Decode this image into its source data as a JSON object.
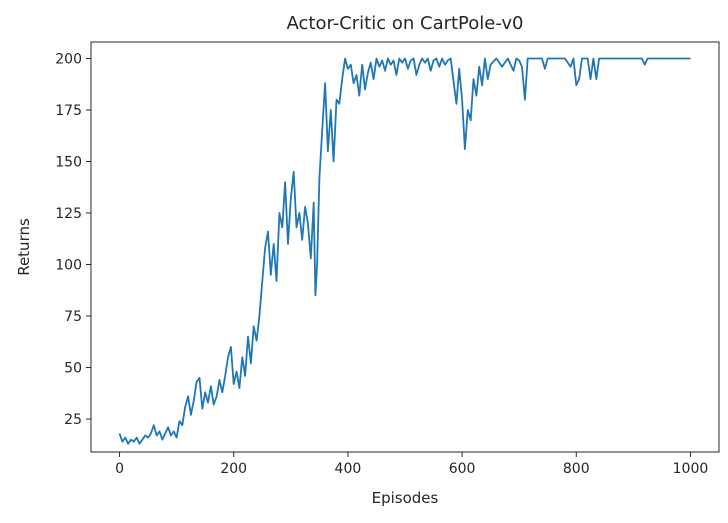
{
  "chart_data": {
    "type": "line",
    "title": "Actor-Critic on CartPole-v0",
    "xlabel": "Episodes",
    "ylabel": "Returns",
    "xlim": [
      -50,
      1050
    ],
    "ylim": [
      9,
      208
    ],
    "xticks": [
      0,
      200,
      400,
      600,
      800,
      1000
    ],
    "yticks": [
      25,
      50,
      75,
      100,
      125,
      150,
      175,
      200
    ],
    "grid": false,
    "series": [
      {
        "color": "#1f77b4",
        "x": [
          0,
          5,
          10,
          15,
          20,
          25,
          30,
          35,
          40,
          45,
          50,
          55,
          60,
          65,
          70,
          75,
          80,
          85,
          90,
          95,
          100,
          105,
          110,
          115,
          120,
          125,
          130,
          135,
          140,
          145,
          150,
          155,
          160,
          165,
          170,
          175,
          180,
          185,
          190,
          195,
          200,
          205,
          210,
          215,
          220,
          225,
          230,
          235,
          240,
          245,
          250,
          255,
          260,
          265,
          270,
          275,
          280,
          285,
          290,
          295,
          300,
          305,
          310,
          315,
          320,
          325,
          330,
          335,
          340,
          343,
          346,
          350,
          355,
          360,
          365,
          370,
          375,
          380,
          385,
          390,
          395,
          400,
          405,
          410,
          415,
          420,
          425,
          430,
          435,
          440,
          445,
          450,
          455,
          460,
          465,
          470,
          475,
          480,
          485,
          490,
          495,
          500,
          505,
          510,
          515,
          520,
          525,
          530,
          535,
          540,
          545,
          550,
          555,
          560,
          565,
          570,
          575,
          580,
          585,
          590,
          595,
          600,
          605,
          610,
          615,
          620,
          625,
          630,
          635,
          640,
          645,
          650,
          660,
          670,
          680,
          690,
          695,
          700,
          705,
          710,
          715,
          720,
          740,
          745,
          750,
          760,
          780,
          790,
          795,
          800,
          805,
          810,
          820,
          825,
          830,
          835,
          840,
          860,
          900,
          915,
          920,
          925,
          940,
          1000
        ],
        "y": [
          18,
          14,
          16,
          13,
          15,
          14,
          16,
          13,
          15,
          17,
          16,
          18,
          22,
          17,
          19,
          15,
          18,
          21,
          17,
          19,
          16,
          24,
          22,
          31,
          36,
          27,
          34,
          43,
          45,
          30,
          38,
          33,
          41,
          32,
          36,
          44,
          38,
          46,
          55,
          60,
          42,
          48,
          40,
          55,
          46,
          65,
          52,
          70,
          63,
          75,
          92,
          108,
          116,
          95,
          110,
          92,
          125,
          118,
          140,
          110,
          132,
          145,
          118,
          125,
          112,
          128,
          120,
          103,
          130,
          85,
          100,
          142,
          165,
          188,
          155,
          175,
          150,
          180,
          178,
          190,
          200,
          195,
          197,
          188,
          192,
          182,
          197,
          185,
          193,
          198,
          190,
          200,
          196,
          199,
          194,
          200,
          197,
          199,
          192,
          200,
          198,
          200,
          195,
          199,
          200,
          192,
          197,
          200,
          198,
          200,
          194,
          199,
          200,
          196,
          200,
          197,
          199,
          200,
          189,
          178,
          195,
          180,
          156,
          175,
          170,
          190,
          182,
          196,
          187,
          200,
          190,
          197,
          200,
          196,
          200,
          194,
          200,
          199,
          196,
          180,
          200,
          200,
          200,
          195,
          200,
          200,
          200,
          196,
          200,
          187,
          190,
          200,
          200,
          190,
          200,
          190,
          200,
          200,
          200,
          200,
          197,
          200,
          200,
          200
        ]
      }
    ]
  }
}
